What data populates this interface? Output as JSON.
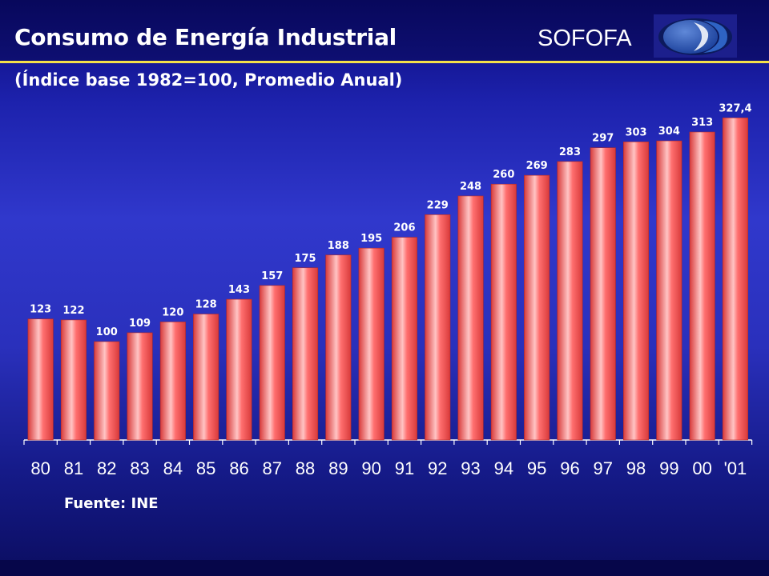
{
  "header": {
    "title": "Consumo de Energía Industrial",
    "brand": "SOFOFA",
    "logo_icon": "sofofa-logo-icon"
  },
  "subtitle": "(Índice base 1982=100, Promedio Anual)",
  "source_note": "Fuente: INE",
  "colors": {
    "bar": "#ff6f6f",
    "bar_highlight": "#ffc4c4",
    "bar_shade": "#d83a3a",
    "label_text": "#ffffff",
    "accent_line": "#f4e04a"
  },
  "chart_data": {
    "type": "bar",
    "title": "Consumo de Energía Industrial",
    "subtitle": "(Índice base 1982=100, Promedio Anual)",
    "xlabel": "",
    "ylabel": "",
    "categories": [
      "80",
      "81",
      "82",
      "83",
      "84",
      "85",
      "86",
      "87",
      "88",
      "89",
      "90",
      "91",
      "92",
      "93",
      "94",
      "95",
      "96",
      "97",
      "98",
      "99",
      "00",
      "'01"
    ],
    "values": [
      123,
      122,
      100,
      109,
      120,
      128,
      143,
      157,
      175,
      188,
      195,
      206,
      229,
      248,
      260,
      269,
      283,
      297,
      303,
      304,
      313,
      327.4
    ],
    "value_labels": [
      "123",
      "122",
      "100",
      "109",
      "120",
      "128",
      "143",
      "157",
      "175",
      "188",
      "195",
      "206",
      "229",
      "248",
      "260",
      "269",
      "283",
      "297",
      "303",
      "304",
      "313",
      "327,4"
    ],
    "grid": false,
    "legend": "none"
  }
}
